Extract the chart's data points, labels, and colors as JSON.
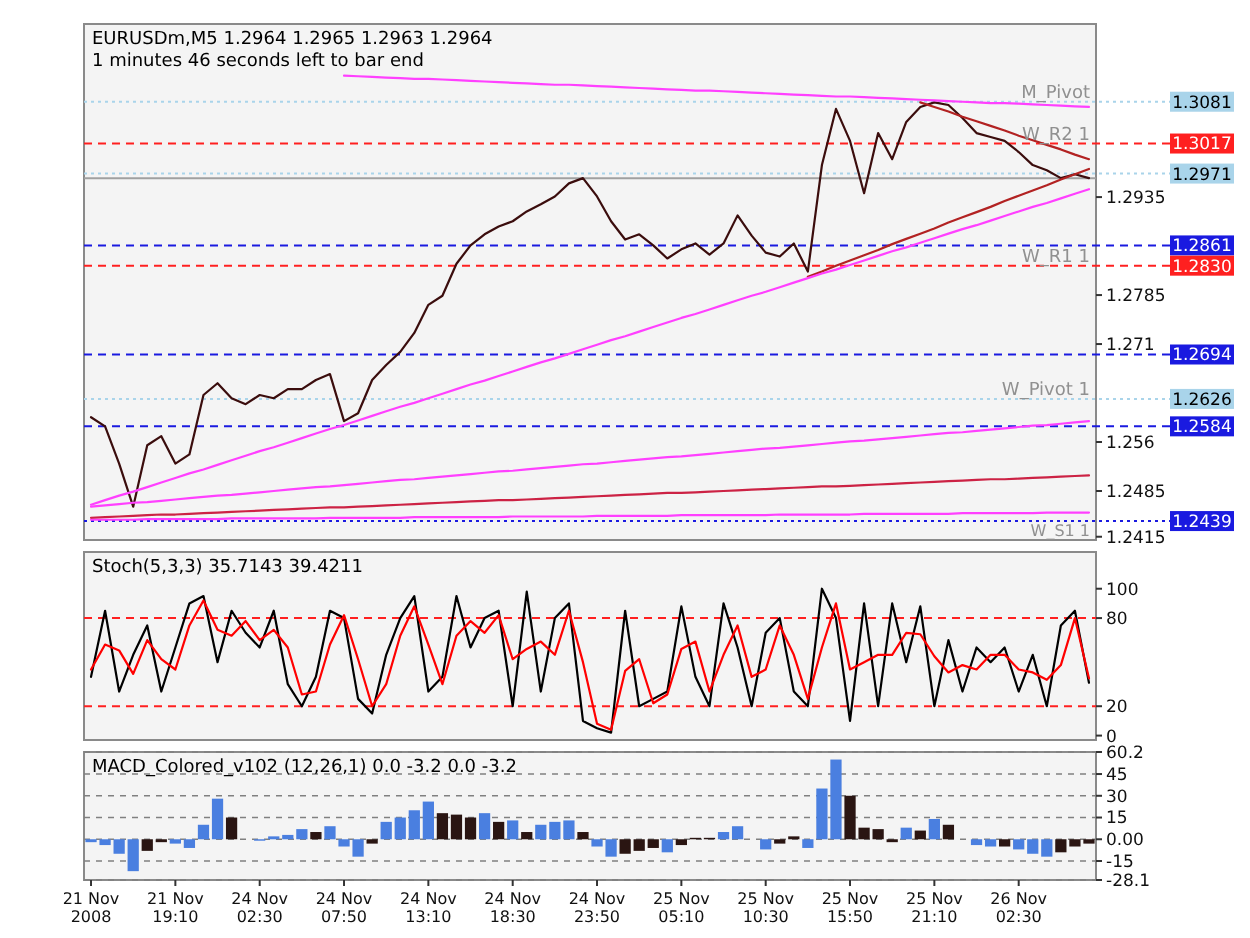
{
  "chart_data": [
    {
      "type": "line",
      "title": "EURUSDm,M5  1.2964 1.2965 1.2963 1.2964",
      "subtitle": "1 minutes 46 seconds left to bar end",
      "ylim": [
        1.241,
        1.32
      ],
      "yticks": [
        1.2415,
        1.2485,
        1.256,
        1.271,
        1.2785,
        1.2935
      ],
      "tick_labels": "y",
      "series": [
        {
          "color": "#3b0d0d",
          "values": [
            1.2598,
            1.2584,
            1.2527,
            1.2461,
            1.2555,
            1.2569,
            1.2527,
            1.2541,
            1.2632,
            1.265,
            1.2627,
            1.2618,
            1.2632,
            1.2627,
            1.2641,
            1.2641,
            1.2655,
            1.2664,
            1.2592,
            1.2604,
            1.2655,
            1.2678,
            1.2698,
            1.2727,
            1.277,
            1.2784,
            1.2833,
            1.2861,
            1.2878,
            1.289,
            1.2898,
            1.2913,
            1.2924,
            1.2936,
            1.2956,
            1.2964,
            1.2936,
            1.2898,
            1.287,
            1.2878,
            1.2861,
            1.2841,
            1.2855,
            1.2864,
            1.2847,
            1.2864,
            1.2907,
            1.2876,
            1.285,
            1.2844,
            1.2864,
            1.2821,
            1.2984,
            1.307,
            1.3021,
            1.2941,
            1.3033,
            1.2993,
            1.305,
            1.3073,
            1.308,
            1.3076,
            1.3056,
            1.3033,
            1.3027,
            1.3021,
            1.3004,
            1.2984,
            1.2976,
            1.2964,
            1.297,
            1.2964
          ]
        },
        {
          "type": "line",
          "color": "#ff40ff",
          "values": [
            null,
            null,
            null,
            null,
            null,
            null,
            null,
            null,
            null,
            null,
            null,
            null,
            null,
            null,
            null,
            null,
            null,
            null,
            1.3121,
            1.312,
            1.3119,
            1.3118,
            1.3117,
            1.3116,
            1.3116,
            1.3115,
            1.3114,
            1.3113,
            1.3112,
            1.3111,
            1.311,
            1.3109,
            1.3108,
            1.3107,
            1.3107,
            1.3106,
            1.3105,
            1.3104,
            1.3103,
            1.3102,
            1.3101,
            1.31,
            1.3099,
            1.3098,
            1.3098,
            1.3097,
            1.3096,
            1.3095,
            1.3094,
            1.3093,
            1.3092,
            1.3091,
            1.309,
            1.3089,
            1.3089,
            1.3088,
            1.3087,
            1.3086,
            1.3085,
            1.3084,
            1.3083,
            1.3082,
            1.3081,
            1.308,
            1.3079,
            1.3079,
            1.3078,
            1.3077,
            1.3076,
            1.3075,
            1.3074,
            1.3073
          ]
        },
        {
          "type": "line",
          "color": "#b22222",
          "values": [
            null,
            null,
            null,
            null,
            null,
            null,
            null,
            null,
            null,
            null,
            null,
            null,
            null,
            null,
            null,
            null,
            null,
            null,
            null,
            null,
            null,
            null,
            null,
            null,
            null,
            null,
            null,
            null,
            null,
            null,
            null,
            null,
            null,
            null,
            null,
            null,
            null,
            null,
            null,
            null,
            null,
            null,
            null,
            null,
            null,
            null,
            null,
            null,
            null,
            null,
            null,
            null,
            null,
            null,
            null,
            null,
            null,
            null,
            null,
            1.308,
            1.3073,
            1.3066,
            1.3058,
            1.3051,
            1.3044,
            1.3037,
            1.3029,
            1.3022,
            1.3015,
            1.3008,
            1.3,
            1.2993
          ]
        },
        {
          "type": "line",
          "color": "#b22222",
          "values": [
            null,
            null,
            null,
            null,
            null,
            null,
            null,
            null,
            null,
            null,
            null,
            null,
            null,
            null,
            null,
            null,
            null,
            null,
            null,
            null,
            null,
            null,
            null,
            null,
            null,
            null,
            null,
            null,
            null,
            null,
            null,
            null,
            null,
            null,
            null,
            null,
            null,
            null,
            null,
            null,
            null,
            null,
            null,
            null,
            null,
            null,
            null,
            null,
            null,
            null,
            null,
            1.2813,
            1.2821,
            1.283,
            1.2838,
            1.2846,
            1.2854,
            1.2863,
            1.2871,
            1.2879,
            1.2887,
            1.2896,
            1.2904,
            1.2912,
            1.292,
            1.2929,
            1.2937,
            1.2945,
            1.2953,
            1.2962,
            1.297,
            1.2978
          ]
        },
        {
          "type": "line",
          "color": "#ff40ff",
          "values": [
            1.2464,
            1.2471,
            1.2478,
            1.2484,
            1.2491,
            1.2498,
            1.2505,
            1.2512,
            1.2518,
            1.2525,
            1.2532,
            1.2539,
            1.2546,
            1.2552,
            1.2559,
            1.2566,
            1.2573,
            1.258,
            1.2586,
            1.2593,
            1.26,
            1.2607,
            1.2614,
            1.262,
            1.2627,
            1.2634,
            1.2641,
            1.2648,
            1.2654,
            1.2661,
            1.2668,
            1.2675,
            1.2682,
            1.2688,
            1.2695,
            1.2702,
            1.2709,
            1.2716,
            1.2722,
            1.2729,
            1.2736,
            1.2743,
            1.275,
            1.2756,
            1.2763,
            1.277,
            1.2777,
            1.2784,
            1.279,
            1.2797,
            1.2804,
            1.2811,
            1.2818,
            1.2824,
            1.2831,
            1.2838,
            1.2845,
            1.2852,
            1.2858,
            1.2865,
            1.2872,
            1.2879,
            1.2886,
            1.2892,
            1.2899,
            1.2906,
            1.2913,
            1.292,
            1.2926,
            1.2933,
            1.294,
            1.2947
          ]
        },
        {
          "type": "line",
          "color": "#ff40ff",
          "values": [
            1.2461,
            1.2463,
            1.2465,
            1.2467,
            1.2468,
            1.247,
            1.2472,
            1.2474,
            1.2476,
            1.2478,
            1.2479,
            1.2481,
            1.2483,
            1.2485,
            1.2487,
            1.2489,
            1.2491,
            1.2492,
            1.2494,
            1.2496,
            1.2498,
            1.25,
            1.2502,
            1.2503,
            1.2505,
            1.2507,
            1.2509,
            1.2511,
            1.2513,
            1.2515,
            1.2516,
            1.2518,
            1.252,
            1.2522,
            1.2524,
            1.2526,
            1.2527,
            1.2529,
            1.2531,
            1.2533,
            1.2535,
            1.2537,
            1.2538,
            1.254,
            1.2542,
            1.2544,
            1.2546,
            1.2548,
            1.255,
            1.2551,
            1.2553,
            1.2555,
            1.2557,
            1.2559,
            1.2561,
            1.2562,
            1.2564,
            1.2566,
            1.2568,
            1.257,
            1.2572,
            1.2574,
            1.2575,
            1.2577,
            1.2579,
            1.2581,
            1.2583,
            1.2585,
            1.2586,
            1.2588,
            1.259,
            1.2592
          ]
        },
        {
          "type": "line",
          "color": "#cc2244",
          "values": [
            1.2444,
            1.2445,
            1.2446,
            1.2447,
            1.2448,
            1.2449,
            1.2449,
            1.245,
            1.2451,
            1.2452,
            1.2453,
            1.2454,
            1.2455,
            1.2456,
            1.2457,
            1.2458,
            1.2459,
            1.246,
            1.246,
            1.2461,
            1.2462,
            1.2463,
            1.2464,
            1.2465,
            1.2466,
            1.2467,
            1.2468,
            1.2469,
            1.247,
            1.2471,
            1.2471,
            1.2472,
            1.2473,
            1.2474,
            1.2475,
            1.2476,
            1.2477,
            1.2478,
            1.2479,
            1.248,
            1.2481,
            1.2482,
            1.2482,
            1.2483,
            1.2484,
            1.2485,
            1.2486,
            1.2487,
            1.2488,
            1.2489,
            1.249,
            1.2491,
            1.2492,
            1.2492,
            1.2493,
            1.2494,
            1.2495,
            1.2496,
            1.2497,
            1.2498,
            1.2499,
            1.25,
            1.2501,
            1.2502,
            1.2503,
            1.2503,
            1.2504,
            1.2505,
            1.2506,
            1.2507,
            1.2508,
            1.2509
          ]
        },
        {
          "type": "line",
          "color": "#ff40ff",
          "values": [
            1.2441,
            1.2441,
            1.2441,
            1.2441,
            1.2442,
            1.2442,
            1.2442,
            1.2442,
            1.2442,
            1.2442,
            1.2443,
            1.2443,
            1.2443,
            1.2443,
            1.2443,
            1.2443,
            1.2443,
            1.2444,
            1.2444,
            1.2444,
            1.2444,
            1.2444,
            1.2444,
            1.2445,
            1.2445,
            1.2445,
            1.2445,
            1.2445,
            1.2445,
            1.2445,
            1.2446,
            1.2446,
            1.2446,
            1.2446,
            1.2446,
            1.2446,
            1.2447,
            1.2447,
            1.2447,
            1.2447,
            1.2447,
            1.2447,
            1.2448,
            1.2448,
            1.2448,
            1.2448,
            1.2448,
            1.2448,
            1.2448,
            1.2449,
            1.2449,
            1.2449,
            1.2449,
            1.2449,
            1.2449,
            1.245,
            1.245,
            1.245,
            1.245,
            1.245,
            1.245,
            1.245,
            1.2451,
            1.2451,
            1.2451,
            1.2451,
            1.2451,
            1.2451,
            1.2452,
            1.2452,
            1.2452,
            1.2452
          ]
        }
      ],
      "ref_lines": [
        {
          "axis": "y",
          "value": 1.3081,
          "label": "1.3081",
          "color": "#a9d4ea",
          "line_style": "dotted"
        },
        {
          "axis": "y",
          "value": 1.3017,
          "label": "1.3017",
          "color": "#ff2020",
          "line_style": "dashed"
        },
        {
          "axis": "y",
          "value": 1.2971,
          "label": "1.2971",
          "color": "#a9d4ea",
          "line_style": "dotted"
        },
        {
          "axis": "y",
          "value": 1.2964,
          "color": "#a0a0a0",
          "line_style": "solid"
        },
        {
          "axis": "y",
          "value": 1.2861,
          "label": "1.2861",
          "color": "#1a1ae0",
          "line_style": "dashed"
        },
        {
          "axis": "y",
          "value": 1.283,
          "label": "1.2830",
          "color": "#ff2020",
          "line_style": "dashed"
        },
        {
          "axis": "y",
          "value": 1.2694,
          "label": "1.2694",
          "color": "#1a1ae0",
          "line_style": "dashed"
        },
        {
          "axis": "y",
          "value": 1.2626,
          "label": "1.2626",
          "color": "#a9d4ea",
          "line_style": "dotted"
        },
        {
          "axis": "y",
          "value": 1.2584,
          "label": "1.2584",
          "color": "#1a1ae0",
          "line_style": "dashed"
        },
        {
          "axis": "y",
          "value": 1.2439,
          "label": "1.2439",
          "color": "#1a1ae0",
          "line_style": "dotted"
        }
      ],
      "annotations": [
        {
          "text": "M_Pivot",
          "y": 1.3081
        },
        {
          "text": "W_R2 1",
          "y": 1.3017
        },
        {
          "text": "W_R1 1",
          "y": 1.283
        },
        {
          "text": "W_Pivot 1",
          "y": 1.2626
        },
        {
          "text": "W_S1 1",
          "y": 1.2439
        }
      ]
    },
    {
      "type": "line",
      "title": "Stoch(5,3,3) 35.7143 39.4211",
      "ylim": [
        -3,
        125
      ],
      "yticks": [
        0,
        20,
        80,
        100
      ],
      "tick_labels": "y",
      "series": [
        {
          "color": "#000000",
          "values": [
            40,
            85,
            30,
            55,
            75,
            30,
            60,
            90,
            95,
            50,
            85,
            70,
            60,
            85,
            35,
            20,
            40,
            85,
            80,
            25,
            15,
            55,
            80,
            95,
            30,
            40,
            95,
            60,
            80,
            85,
            20,
            98,
            30,
            80,
            90,
            10,
            5,
            2,
            85,
            20,
            25,
            30,
            88,
            40,
            20,
            90,
            60,
            20,
            70,
            80,
            30,
            20,
            100,
            80,
            10,
            90,
            20,
            90,
            50,
            88,
            20,
            65,
            30,
            60,
            50,
            60,
            30,
            55,
            20,
            75,
            85,
            36
          ]
        },
        {
          "color": "#ff0000",
          "values": [
            45,
            62,
            58,
            42,
            65,
            52,
            45,
            75,
            92,
            72,
            68,
            78,
            65,
            72,
            60,
            28,
            30,
            62,
            82,
            52,
            20,
            35,
            68,
            88,
            62,
            35,
            68,
            78,
            70,
            82,
            52,
            59,
            64,
            55,
            85,
            50,
            8,
            4,
            44,
            52,
            22,
            28,
            59,
            64,
            30,
            55,
            75,
            40,
            45,
            75,
            55,
            25,
            60,
            90,
            45,
            50,
            55,
            55,
            70,
            69,
            54,
            43,
            48,
            45,
            55,
            55,
            45,
            43,
            38,
            48,
            80,
            39
          ]
        }
      ],
      "ref_lines": [
        {
          "axis": "y",
          "value": 80,
          "color": "#ff2020",
          "line_style": "dashed"
        },
        {
          "axis": "y",
          "value": 20,
          "color": "#ff2020",
          "line_style": "dashed"
        }
      ]
    },
    {
      "type": "bar",
      "title": "MACD_Colored_v102 (12,26,1) 0.0 -3.2 0.0 -3.2",
      "categories": [
        "21 Nov 2008",
        null,
        null,
        null,
        null,
        null,
        "21 Nov 19:10",
        null,
        null,
        null,
        null,
        null,
        "24 Nov 02:30",
        null,
        null,
        null,
        null,
        null,
        "24 Nov 07:50",
        null,
        null,
        null,
        null,
        null,
        "24 Nov 13:10",
        null,
        null,
        null,
        null,
        null,
        "24 Nov 18:30",
        null,
        null,
        null,
        null,
        null,
        "24 Nov 23:50",
        null,
        null,
        null,
        null,
        null,
        "25 Nov 05:10",
        null,
        null,
        null,
        null,
        null,
        "25 Nov 10:30",
        null,
        null,
        null,
        null,
        null,
        "25 Nov 15:50",
        null,
        null,
        null,
        null,
        null,
        "25 Nov 21:10",
        null,
        null,
        null,
        null,
        null,
        "26 Nov 02:30",
        null,
        null,
        null,
        null,
        null
      ],
      "ylim": [
        -28.1,
        60.2
      ],
      "yticks": [
        -28.1,
        -15,
        {
          "value": 0,
          "label": "0.00"
        },
        15,
        30,
        45,
        60.2
      ],
      "grid": "y",
      "values": [
        -2,
        -4,
        -10,
        -22,
        -8,
        -2,
        -3,
        -6,
        10,
        28,
        15,
        0,
        -1,
        2,
        3,
        7,
        5,
        9,
        -5,
        -12,
        -3,
        12,
        15,
        20,
        26,
        18,
        17,
        15,
        18,
        12,
        13,
        5,
        10,
        12,
        13,
        5,
        -5,
        -12,
        -10,
        -8,
        -6,
        -9,
        -4,
        1,
        1,
        5,
        9,
        0,
        -7,
        -3,
        2,
        -6,
        35,
        55,
        30,
        8,
        7,
        -2,
        8,
        6,
        14,
        10,
        0,
        -4,
        -5,
        -5,
        -7,
        -10,
        -12,
        -9,
        -5,
        -3
      ],
      "colors": [
        "#4a7fe0",
        "#4a7fe0",
        "#4a7fe0",
        "#4a7fe0",
        "#2a1512",
        "#2a1512",
        "#4a7fe0",
        "#4a7fe0",
        "#4a7fe0",
        "#4a7fe0",
        "#2a1512",
        "#2a1512",
        "#4a7fe0",
        "#4a7fe0",
        "#4a7fe0",
        "#4a7fe0",
        "#2a1512",
        "#4a7fe0",
        "#4a7fe0",
        "#4a7fe0",
        "#2a1512",
        "#4a7fe0",
        "#4a7fe0",
        "#4a7fe0",
        "#4a7fe0",
        "#2a1512",
        "#2a1512",
        "#2a1512",
        "#4a7fe0",
        "#2a1512",
        "#4a7fe0",
        "#2a1512",
        "#4a7fe0",
        "#4a7fe0",
        "#4a7fe0",
        "#2a1512",
        "#4a7fe0",
        "#4a7fe0",
        "#2a1512",
        "#2a1512",
        "#2a1512",
        "#4a7fe0",
        "#2a1512",
        "#2a1512",
        "#2a1512",
        "#4a7fe0",
        "#4a7fe0",
        "#2a1512",
        "#4a7fe0",
        "#2a1512",
        "#2a1512",
        "#4a7fe0",
        "#4a7fe0",
        "#4a7fe0",
        "#2a1512",
        "#2a1512",
        "#2a1512",
        "#2a1512",
        "#4a7fe0",
        "#2a1512",
        "#4a7fe0",
        "#2a1512",
        "#2a1512",
        "#4a7fe0",
        "#4a7fe0",
        "#2a1512",
        "#4a7fe0",
        "#4a7fe0",
        "#4a7fe0",
        "#2a1512",
        "#2a1512",
        "#2a1512"
      ]
    }
  ]
}
